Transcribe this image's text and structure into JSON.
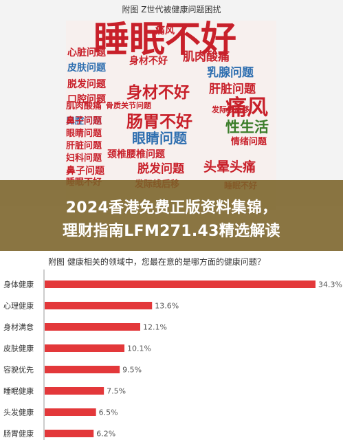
{
  "cloud_title": "附图 Z世代被健康问题困扰",
  "word_cloud": [
    {
      "text": "睡眠不好",
      "color": "#c8202a"
    },
    {
      "text": "痛风",
      "color": "#c8202a"
    },
    {
      "text": "心脏问题",
      "color": "#c8202a"
    },
    {
      "text": "皮肤问题",
      "color": "#2f6fb0"
    },
    {
      "text": "身材不好",
      "color": "#c8202a"
    },
    {
      "text": "肌肉酸痛",
      "color": "#c8202a"
    },
    {
      "text": "脱发问题",
      "color": "#c8202a"
    },
    {
      "text": "口腔问题",
      "color": "#c8202a"
    },
    {
      "text": "乳腺问题",
      "color": "#2f6fb0"
    },
    {
      "text": "身材不好",
      "color": "#c8202a"
    },
    {
      "text": "肝脏问题",
      "color": "#c8202a"
    },
    {
      "text": "口腔问题",
      "color": "#2f6fb0"
    },
    {
      "text": "骨质关节问题",
      "color": "#c8202a"
    },
    {
      "text": "痛风",
      "color": "#c8202a"
    },
    {
      "text": "肌肉酸痛",
      "color": "#c8202a"
    },
    {
      "text": "鼻子问题",
      "color": "#c8202a"
    },
    {
      "text": "肠胃不好",
      "color": "#c8202a"
    },
    {
      "text": "性生活",
      "color": "#3b7d2a"
    },
    {
      "text": "眼睛问题",
      "color": "#c8202a"
    },
    {
      "text": "眼睛问题",
      "color": "#2f6fb0"
    },
    {
      "text": "发际线后移",
      "color": "#c8202a"
    },
    {
      "text": "肝脏问题",
      "color": "#c8202a"
    },
    {
      "text": "颈椎腰椎问题",
      "color": "#c8202a"
    },
    {
      "text": "情绪问题",
      "color": "#c8202a"
    },
    {
      "text": "妇科问题",
      "color": "#c8202a"
    },
    {
      "text": "鼻子问题",
      "color": "#c8202a"
    },
    {
      "text": "脱发问题",
      "color": "#c8202a"
    },
    {
      "text": "头晕头痛",
      "color": "#c8202a"
    },
    {
      "text": "睡眠不好",
      "color": "#c8202a"
    },
    {
      "text": "睡眠不好",
      "color": "#c8202a"
    },
    {
      "text": "发际线后移",
      "color": "#c8202a"
    }
  ],
  "banner": {
    "line1": "2024香港免费正版资料集锦，",
    "line2": "理财指南LFM271.43精选解读"
  },
  "chart_data": {
    "type": "bar",
    "orientation": "horizontal",
    "title": "附图 健康相关的领域中，您最在意的是哪方面的健康问题？",
    "categories": [
      "身体健康",
      "心理健康",
      "身材满意",
      "皮肤健康",
      "容貌优先",
      "睡眠健康",
      "头发健康",
      "肠胃健康"
    ],
    "values": [
      34.3,
      13.6,
      12.1,
      10.1,
      9.5,
      7.5,
      6.5,
      6.2
    ],
    "value_labels": [
      "34.3%",
      "13.6%",
      "12.1%",
      "10.1%",
      "9.5%",
      "7.5%",
      "6.5%",
      "6.2%"
    ],
    "xlim": [
      0,
      34.3
    ],
    "bar_color": "#e3383a",
    "grid": false
  }
}
